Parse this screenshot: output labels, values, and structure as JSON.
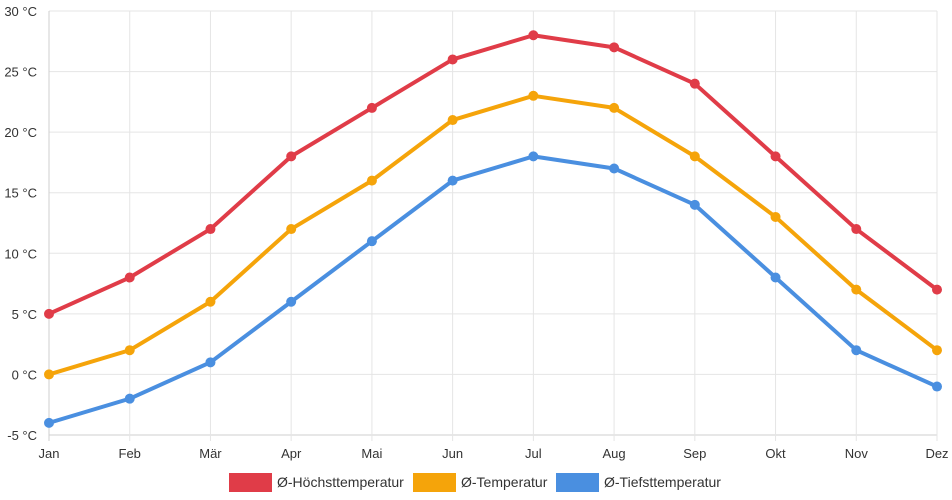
{
  "chart_data": {
    "type": "line",
    "title": "",
    "xlabel": "",
    "ylabel": "",
    "categories": [
      "Jan",
      "Feb",
      "Mär",
      "Apr",
      "Mai",
      "Jun",
      "Jul",
      "Aug",
      "Sep",
      "Okt",
      "Nov",
      "Dez"
    ],
    "yticks": [
      30,
      25,
      20,
      15,
      10,
      5,
      0,
      -5
    ],
    "ytick_labels": [
      "30 °C",
      "25 °C",
      "20 °C",
      "15 °C",
      "10 °C",
      "5 °C",
      "0 °C",
      "-5 °C"
    ],
    "ylim": [
      -5,
      30
    ],
    "grid": true,
    "legend_position": "bottom-center",
    "series": [
      {
        "name": "Ø-Höchsttemperatur",
        "color": "#e03c48",
        "values": [
          5,
          8,
          12,
          18,
          22,
          26,
          28,
          27,
          24,
          18,
          12,
          7
        ]
      },
      {
        "name": "Ø-Temperatur",
        "color": "#f5a40a",
        "values": [
          0,
          2,
          6,
          12,
          16,
          21,
          23,
          22,
          18,
          13,
          7,
          2
        ]
      },
      {
        "name": "Ø-Tiefsttemperatur",
        "color": "#4a8fe0",
        "values": [
          -4,
          -2,
          1,
          6,
          11,
          16,
          18,
          17,
          14,
          8,
          2,
          -1
        ]
      }
    ]
  }
}
